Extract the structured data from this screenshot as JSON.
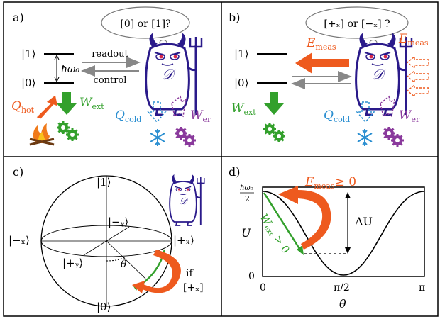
{
  "panels": {
    "a": {
      "label": "a)",
      "thought": "[0] or [1]?",
      "level1": "|1⟩",
      "level0": "|0⟩",
      "gap": "ħω₀",
      "readout": "readout",
      "control": "control",
      "demon": "𝒟",
      "q_hot": "Q",
      "q_hot_sub": "hot",
      "w_ext": "W",
      "w_ext_sub": "ext",
      "q_cold": "Q",
      "q_cold_sub": "cold",
      "w_er": "W",
      "w_er_sub": "er"
    },
    "b": {
      "label": "b)",
      "thought": "[+ₓ] or [−ₓ] ?",
      "level1": "|1⟩",
      "level0": "|0⟩",
      "e_meas": "E",
      "e_meas_sub": "meas",
      "e_meas2": "E",
      "e_meas2_sub": "meas",
      "demon": "𝒟",
      "w_ext": "W",
      "w_ext_sub": "ext",
      "q_cold": "Q",
      "q_cold_sub": "cold",
      "w_er": "W",
      "w_er_sub": "er"
    },
    "c": {
      "label": "c)",
      "top": "|1⟩",
      "bottom": "|0⟩",
      "minus_x": "|−ₓ⟩",
      "plus_x": "|+ₓ⟩",
      "minus_y": "|−ᵧ⟩",
      "plus_y": "|+ᵧ⟩",
      "theta": "θ",
      "if": "if",
      "cond": "[+ₓ]",
      "demon": "𝒟"
    },
    "d": {
      "label": "d)",
      "e_meas": "E",
      "e_meas_sub": "meas",
      "e_meas_rel": "≥ 0",
      "ytop_num": "ħω₀",
      "ytop_den": "2",
      "ylabel": "U",
      "y0": "0",
      "x0": "0",
      "xmid": "π/2",
      "xmax": "π",
      "xlabel": "θ",
      "delta_u": "ΔU",
      "w_ext": "W",
      "w_ext_sub": "ext",
      "w_ext_rel": " > 0"
    }
  },
  "colors": {
    "orange": "#ee5a1e",
    "green": "#33a02c",
    "blue": "#2b8fd1",
    "purple": "#8a3a9c",
    "gray": "#888888",
    "demon": "#2a1a8a"
  }
}
